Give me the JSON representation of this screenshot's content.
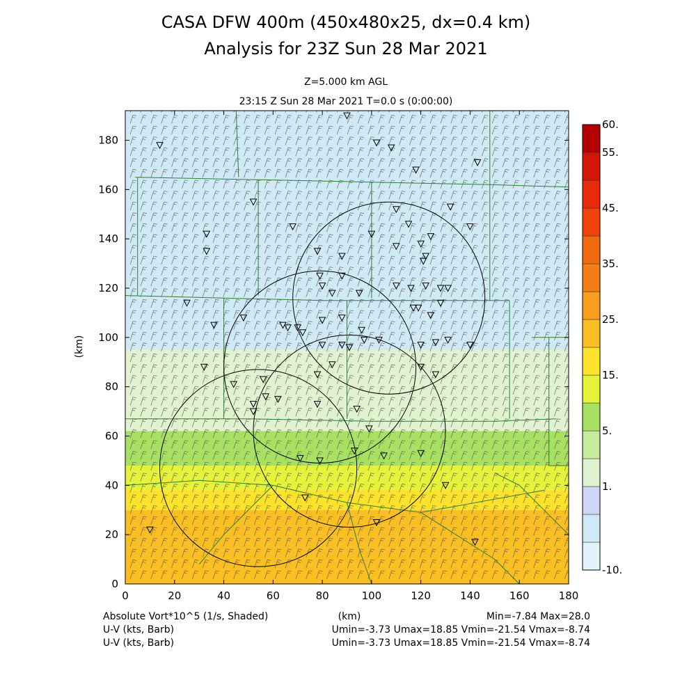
{
  "title_line1": "CASA DFW 400m (450x480x25, dx=0.4 km)",
  "title_line2": "Analysis for 23Z Sun 28 Mar 2021",
  "subtitle_line1": "Z=5.000 km AGL",
  "subtitle_line2": "23:15 Z Sun 28 Mar 2021    T=0.0 s (0:00:00)",
  "footer": {
    "left": [
      "Absolute Vort*10^5 (1/s, Shaded)",
      "U-V (kts, Barb)",
      "U-V (kts, Barb)"
    ],
    "xunit": "(km)",
    "right": [
      "Min=-7.84 Max=28.0",
      "Umin=-3.73 Umax=18.85 Vmin=-21.54 Vmax=-8.74",
      "Umin=-3.73 Umax=18.85 Vmin=-21.54 Vmax=-8.74"
    ]
  },
  "colors": {
    "county_lines": "#2e7d32",
    "radar_rings": "#000000",
    "stations": "#000000"
  },
  "chart_data": {
    "type": "heatmap",
    "xlabel": "",
    "ylabel": "(km)",
    "xlim": [
      0,
      180
    ],
    "ylim": [
      0,
      192
    ],
    "xticks": [
      0,
      20,
      40,
      60,
      80,
      100,
      120,
      140,
      160,
      180
    ],
    "yticks": [
      0,
      20,
      40,
      60,
      80,
      100,
      120,
      140,
      160,
      180
    ],
    "colorbar": {
      "levels": [
        -10,
        -2,
        0,
        1,
        3,
        5,
        10,
        15,
        20,
        25,
        30,
        35,
        40,
        45,
        50,
        55,
        60
      ],
      "labels": [
        {
          "value": -10,
          "text": "-10."
        },
        {
          "value": 1,
          "text": "1."
        },
        {
          "value": 5,
          "text": "5."
        },
        {
          "value": 15,
          "text": "15."
        },
        {
          "value": 25,
          "text": "25."
        },
        {
          "value": 35,
          "text": "35."
        },
        {
          "value": 45,
          "text": "45."
        },
        {
          "value": 55,
          "text": "55."
        },
        {
          "value": 60,
          "text": "60."
        }
      ],
      "colors": [
        "#e2f4fb",
        "#cfeaf5",
        "#cdd6f4",
        "#e0f2cf",
        "#c5ec9b",
        "#a8e062",
        "#e6f23a",
        "#fde22c",
        "#fbbf24",
        "#f89d1e",
        "#f57e13",
        "#f26a10",
        "#f2420c",
        "#e82a0c",
        "#d21706",
        "#b30000"
      ]
    },
    "field_bands": [
      {
        "y_from": 160,
        "y_to": 192,
        "value": -2
      },
      {
        "y_from": 95,
        "y_to": 160,
        "value": -1
      },
      {
        "y_from": 62,
        "y_to": 95,
        "value": 2
      },
      {
        "y_from": 48,
        "y_to": 62,
        "value": 6
      },
      {
        "y_from": 38,
        "y_to": 48,
        "value": 12
      },
      {
        "y_from": 30,
        "y_to": 38,
        "value": 18
      },
      {
        "y_from": 0,
        "y_to": 30,
        "value": 24
      }
    ],
    "radar_rings": [
      {
        "x": 107,
        "y": 116,
        "r": 39
      },
      {
        "x": 79,
        "y": 88,
        "r": 39
      },
      {
        "x": 91,
        "y": 62,
        "r": 39
      },
      {
        "x": 54,
        "y": 47,
        "r": 40
      }
    ],
    "stations": [
      [
        14,
        178
      ],
      [
        90,
        190
      ],
      [
        108,
        177
      ],
      [
        102,
        179
      ],
      [
        143,
        171
      ],
      [
        118,
        168
      ],
      [
        52,
        155
      ],
      [
        132,
        153
      ],
      [
        110,
        152
      ],
      [
        140,
        145
      ],
      [
        68,
        145
      ],
      [
        33,
        142
      ],
      [
        33,
        135
      ],
      [
        78,
        135
      ],
      [
        88,
        133
      ],
      [
        100,
        142
      ],
      [
        115,
        146
      ],
      [
        124,
        141
      ],
      [
        120,
        138
      ],
      [
        122,
        133
      ],
      [
        79,
        125
      ],
      [
        88,
        125
      ],
      [
        84,
        118
      ],
      [
        80,
        121
      ],
      [
        95,
        118
      ],
      [
        110,
        121
      ],
      [
        116,
        120
      ],
      [
        122,
        121
      ],
      [
        128,
        120
      ],
      [
        131,
        120
      ],
      [
        25,
        114
      ],
      [
        36,
        105
      ],
      [
        48,
        108
      ],
      [
        64,
        105
      ],
      [
        66,
        104
      ],
      [
        70,
        104
      ],
      [
        72,
        102
      ],
      [
        80,
        107
      ],
      [
        88,
        108
      ],
      [
        96,
        103
      ],
      [
        97,
        99
      ],
      [
        80,
        97
      ],
      [
        88,
        97
      ],
      [
        91,
        96
      ],
      [
        103,
        99
      ],
      [
        120,
        97
      ],
      [
        126,
        98
      ],
      [
        131,
        99
      ],
      [
        140,
        97
      ],
      [
        32,
        88
      ],
      [
        44,
        81
      ],
      [
        56,
        83
      ],
      [
        57,
        76
      ],
      [
        62,
        75
      ],
      [
        52,
        73
      ],
      [
        52,
        70
      ],
      [
        78,
        73
      ],
      [
        94,
        71
      ],
      [
        99,
        63
      ],
      [
        84,
        89
      ],
      [
        78,
        85
      ],
      [
        93,
        54
      ],
      [
        105,
        52
      ],
      [
        120,
        53
      ],
      [
        79,
        50
      ],
      [
        71,
        51
      ],
      [
        73,
        35
      ],
      [
        102,
        25
      ],
      [
        142,
        17
      ],
      [
        10,
        22
      ],
      [
        130,
        40
      ],
      [
        120,
        88
      ],
      [
        126,
        85
      ],
      [
        117,
        112
      ],
      [
        119,
        112
      ],
      [
        124,
        109
      ],
      [
        128,
        114
      ],
      [
        110,
        137
      ],
      [
        121,
        131
      ]
    ]
  }
}
